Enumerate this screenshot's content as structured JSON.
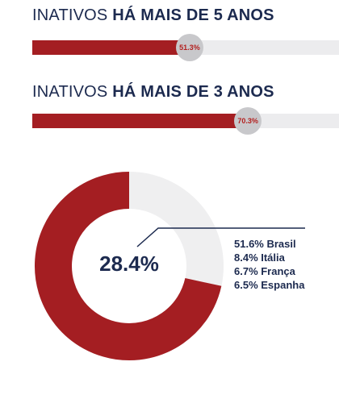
{
  "headings": [
    {
      "plain": "INATIVOS ",
      "bold": "HÁ MAIS DE 5 ANOS"
    },
    {
      "plain": "INATIVOS ",
      "bold": "HÁ MAIS DE 3 ANOS"
    }
  ],
  "colors": {
    "accent_red": "#a41e22",
    "track_gray": "#ececee",
    "badge_gray": "#c8c8cb",
    "navy": "#1c2a4f",
    "donut_rest": "#efeff0"
  },
  "chart_data": [
    {
      "type": "bar",
      "orientation": "horizontal",
      "title": "INATIVOS HÁ MAIS DE 5 ANOS",
      "value_percent": 51.3,
      "label": "51.3%"
    },
    {
      "type": "bar",
      "orientation": "horizontal",
      "title": "INATIVOS HÁ MAIS DE 3 ANOS",
      "value_percent": 70.3,
      "label": "70.3%"
    },
    {
      "type": "pie",
      "subtype": "donut",
      "center_label": "28.4%",
      "highlighted_share_percent": 71.6,
      "legend": [
        {
          "text": "51.6% Brasil",
          "value": 51.6,
          "name": "Brasil"
        },
        {
          "text": "8.4% Itália",
          "value": 8.4,
          "name": "Itália"
        },
        {
          "text": "6.7% França",
          "value": 6.7,
          "name": "França"
        },
        {
          "text": "6.5% Espanha",
          "value": 6.5,
          "name": "Espanha"
        }
      ]
    }
  ]
}
